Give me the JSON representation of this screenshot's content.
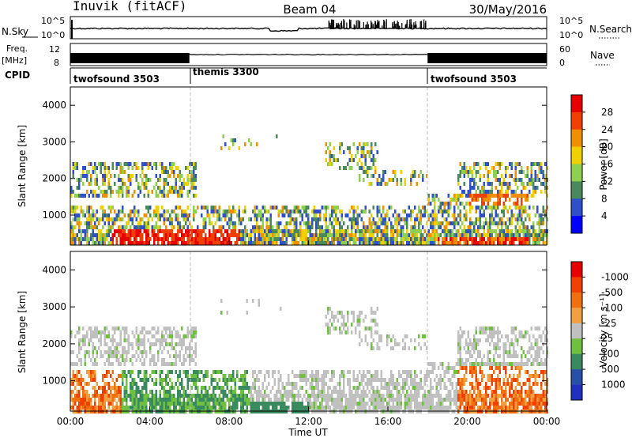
{
  "header": {
    "station": "Inuvik (fitACF)",
    "beam": "Beam 04",
    "date": "30/May/2016"
  },
  "strips": {
    "nsky": {
      "label": "N.Sky",
      "ticks": [
        "10^5",
        "10^0"
      ],
      "right_label": "N.Search",
      "right_ticks": [
        "10^5",
        "10^0"
      ]
    },
    "freq": {
      "label_top": "Freq.",
      "label_unit": "[MHz]",
      "ticks": [
        "12",
        "8"
      ],
      "right_label": "Nave",
      "right_ticks": [
        "60",
        "0"
      ]
    },
    "cpid": {
      "label": "CPID",
      "segments": [
        {
          "name": "twofsound 3503",
          "start_hour": 0,
          "end_hour": 6
        },
        {
          "name": "themis 3300",
          "start_hour": 6,
          "end_hour": 18
        },
        {
          "name": "twofsound 3503",
          "start_hour": 18,
          "end_hour": 24
        }
      ]
    }
  },
  "chart_data": [
    {
      "type": "heatmap",
      "name": "power-panel",
      "x_range": [
        0,
        24
      ],
      "ylim": [
        180,
        4500
      ],
      "ylabel": "Slant Range [km]",
      "yticks": [
        1000,
        2000,
        3000,
        4000
      ],
      "colorbar": {
        "label": "Power [dB]",
        "ticks": [
          "4",
          "8",
          "12",
          "16",
          "20",
          "24",
          "28"
        ],
        "colors": [
          "#0000ff",
          "#3050c8",
          "#4a8a5a",
          "#8fd050",
          "#f0d000",
          "#f09000",
          "#f04000",
          "#e80000"
        ]
      }
    },
    {
      "type": "heatmap",
      "name": "velocity-panel",
      "x_range": [
        0,
        24
      ],
      "ylim": [
        180,
        4500
      ],
      "ylabel": "Slant Range [km]",
      "yticks": [
        1000,
        2000,
        3000,
        4000
      ],
      "xlabel": "Time UT",
      "xticks": [
        "00:00",
        "04:00",
        "08:00",
        "12:00",
        "16:00",
        "20:00",
        "00:00"
      ],
      "colorbar": {
        "label": "Velocity [m s⁻¹]",
        "ticks": [
          "1000",
          "500",
          "100",
          "25",
          "-25",
          "-100",
          "-500",
          "-1000"
        ],
        "colors": [
          "#2030c0",
          "#2850a8",
          "#3a8a60",
          "#70c040",
          "#c0c0c0",
          "#f0a040",
          "#f07010",
          "#f04000",
          "#e80000"
        ]
      }
    }
  ]
}
